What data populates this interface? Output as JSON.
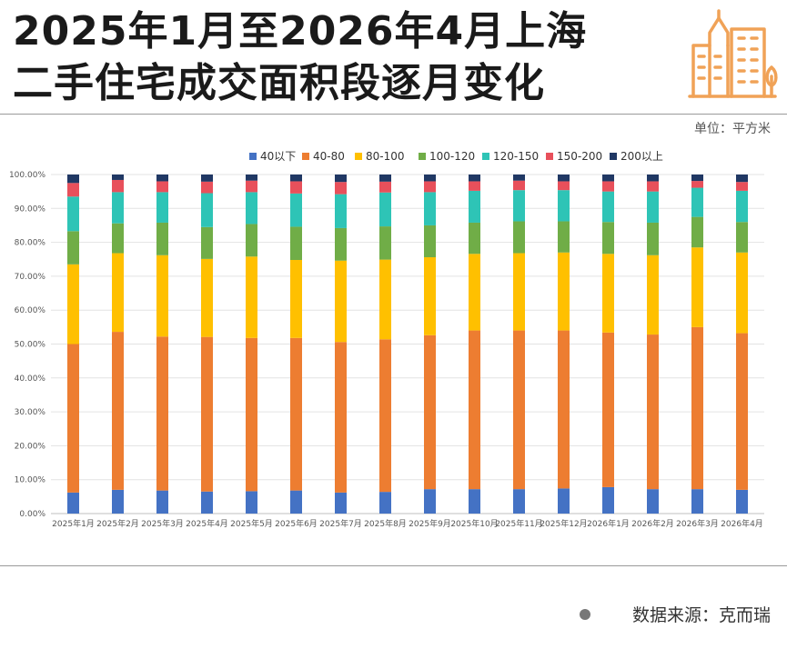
{
  "header": {
    "title_line1": "2025年1月至2026年4月上海",
    "title_line2": "二手住宅成交面积段逐月变化",
    "unit": "单位：平方米",
    "logo_icon": "building-icon",
    "logo_color": "#f0a257"
  },
  "footer": {
    "source": "数据来源：克而瑞"
  },
  "chart_data": {
    "type": "bar",
    "stacked": true,
    "percent": true,
    "title": "",
    "xlabel": "",
    "ylabel": "",
    "ylim": [
      0,
      100
    ],
    "y_ticks": [
      "0.00%",
      "10.00%",
      "20.00%",
      "30.00%",
      "40.00%",
      "50.00%",
      "60.00%",
      "70.00%",
      "80.00%",
      "90.00%",
      "100.00%"
    ],
    "grid": true,
    "legend_position": "top",
    "categories": [
      "2025年1月",
      "2025年2月",
      "2025年3月",
      "2025年4月",
      "2025年5月",
      "2025年6月",
      "2025年7月",
      "2025年8月",
      "2025年9月",
      "2025年10月",
      "2025年11月",
      "2025年12月",
      "2026年1月",
      "2026年2月",
      "2026年3月",
      "2026年4月"
    ],
    "series": [
      {
        "name": "40以下",
        "color": "#4472c4",
        "values": [
          6.2,
          7.0,
          6.8,
          6.5,
          6.6,
          6.8,
          6.2,
          6.4,
          7.2,
          7.2,
          7.2,
          7.4,
          7.8,
          7.2,
          7.2,
          7.0
        ]
      },
      {
        "name": "40-80",
        "color": "#ed7d31",
        "values": [
          43.8,
          46.6,
          45.4,
          45.6,
          45.2,
          45.0,
          44.4,
          45.0,
          45.4,
          46.8,
          46.8,
          46.6,
          45.6,
          45.6,
          47.8,
          46.2
        ]
      },
      {
        "name": "80-100",
        "color": "#ffc000",
        "values": [
          23.5,
          23.2,
          24.0,
          23.0,
          24.0,
          23.0,
          24.0,
          23.5,
          23.0,
          22.6,
          22.8,
          23.0,
          23.2,
          23.4,
          23.5,
          23.8
        ]
      },
      {
        "name": "100-120",
        "color": "#70ad47",
        "values": [
          9.8,
          8.8,
          9.6,
          9.4,
          9.6,
          9.8,
          9.6,
          9.8,
          9.4,
          9.2,
          9.4,
          9.2,
          9.4,
          9.6,
          9.0,
          9.0
        ]
      },
      {
        "name": "120-150",
        "color": "#2ec4b6",
        "values": [
          10.2,
          9.2,
          9.0,
          10.0,
          9.4,
          9.8,
          10.0,
          10.0,
          9.8,
          9.4,
          9.2,
          9.2,
          9.0,
          9.2,
          8.6,
          9.2
        ]
      },
      {
        "name": "150-200",
        "color": "#e8505b",
        "values": [
          4.0,
          3.6,
          3.2,
          3.4,
          3.4,
          3.6,
          3.6,
          3.2,
          3.2,
          2.8,
          2.8,
          2.6,
          3.0,
          3.0,
          2.0,
          2.6
        ]
      },
      {
        "name": "200以上",
        "color": "#203864",
        "values": [
          2.5,
          1.6,
          2.0,
          2.1,
          1.8,
          2.0,
          2.2,
          2.1,
          2.0,
          2.0,
          1.8,
          2.0,
          2.0,
          2.0,
          1.9,
          2.2
        ]
      }
    ]
  }
}
